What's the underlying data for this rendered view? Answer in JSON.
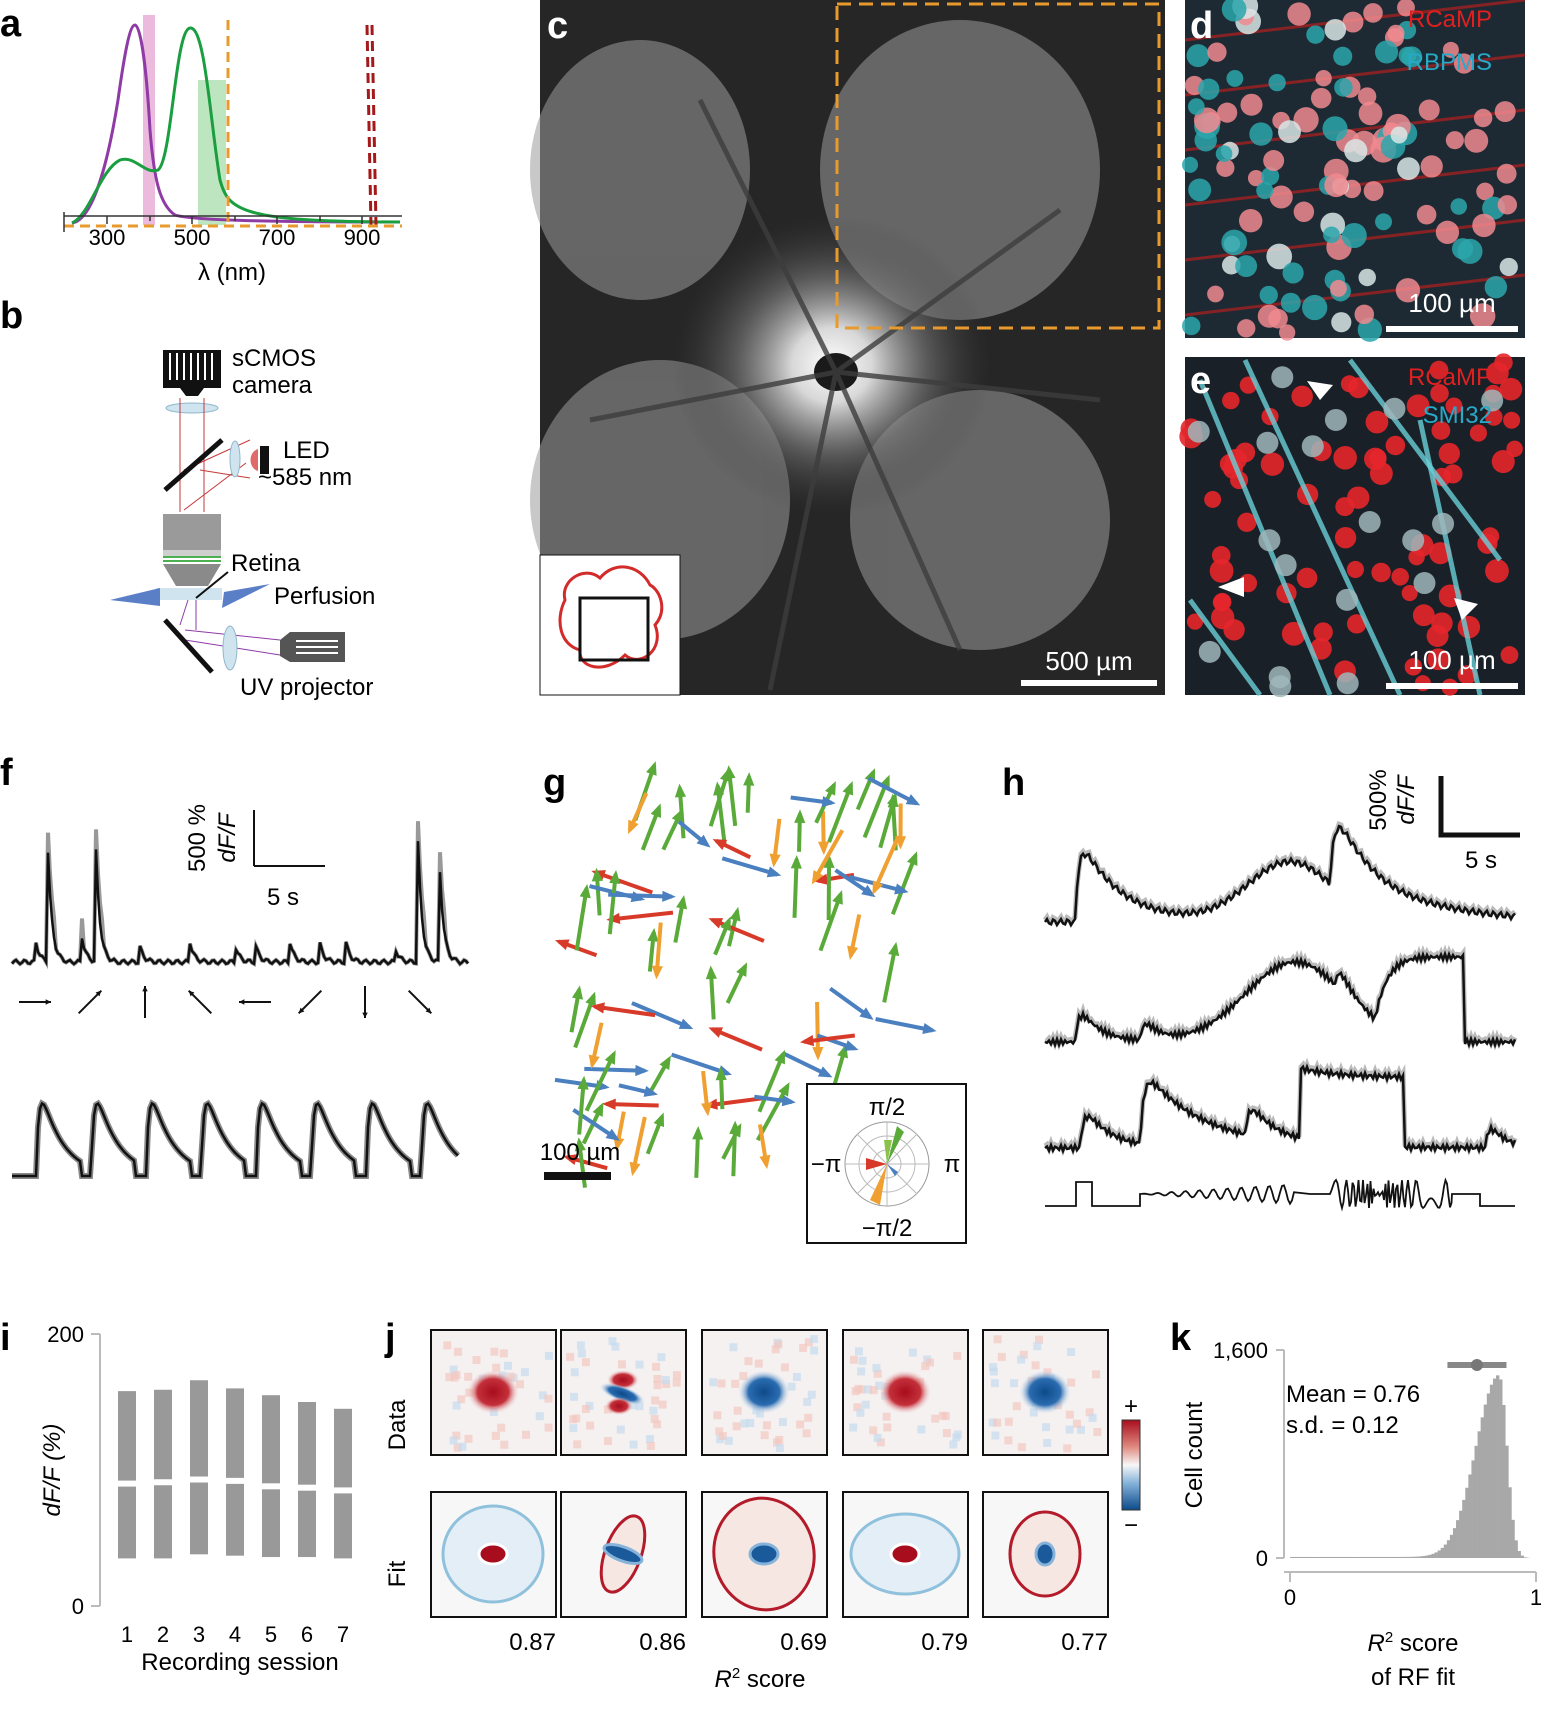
{
  "panels": {
    "a": {
      "label": "a",
      "xlabel": "λ (nm)",
      "ticks": [
        "300",
        "500",
        "700",
        "900"
      ],
      "colors": {
        "uv_spectrum": "#8e3ba6",
        "green_spectrum": "#1a9e3f",
        "orange_line": "#e89a2c",
        "darkred_line": "#a3191c"
      }
    },
    "b": {
      "label": "b",
      "camera": "sCMOS\ncamera",
      "led": "LED\n~585 nm",
      "retina": "Retina",
      "perfusion": "Perfusion",
      "projector": "UV projector"
    },
    "c": {
      "label": "c",
      "scalebar": "500 µm"
    },
    "d": {
      "label": "d",
      "stain1": "RCaMP",
      "stain2": "RBPMS",
      "scalebar": "100 µm"
    },
    "e": {
      "label": "e",
      "stain1": "RCaMP",
      "stain2": "SMI32",
      "scalebar": "100 µm"
    },
    "f": {
      "label": "f",
      "scale_y": "500 %",
      "scale_y_unit": "dF/F",
      "scale_x": "5 s"
    },
    "g": {
      "label": "g",
      "scalebar": "100 µm",
      "polar_labels": {
        "top": "π/2",
        "bottom": "−π/2",
        "left": "−π",
        "right": "π"
      },
      "arrow_colors": {
        "green": "#5aaa3a",
        "orange": "#f0a030",
        "blue": "#4a7fc0",
        "red": "#d83a2a"
      }
    },
    "h": {
      "label": "h",
      "scale_y": "500%",
      "scale_y_unit": "dF/F",
      "scale_x": "5 s"
    },
    "i": {
      "label": "i",
      "ylabel": "dF/F (%)",
      "xlabel": "Recording session"
    },
    "j": {
      "label": "j",
      "row1": "Data",
      "row2": "Fit",
      "xlabel_prefix": "R",
      "xlabel_sup": "2",
      "xlabel_suffix": " score",
      "scores": [
        "0.87",
        "0.86",
        "0.69",
        "0.79",
        "0.77"
      ],
      "colorbar_plus": "+",
      "colorbar_minus": "−"
    },
    "k": {
      "label": "k",
      "ylabel": "Cell count",
      "mean_text": "Mean = 0.76",
      "sd_text": "s.d. = 0.12",
      "xlabel_line1_prefix": "R",
      "xlabel_line1_sup": "2",
      "xlabel_line1_suffix": " score",
      "xlabel_line2": "of RF fit"
    }
  },
  "chart_data": [
    {
      "type": "bar",
      "panel": "i",
      "title": "",
      "xlabel": "Recording session",
      "ylabel": "dF/F (%)",
      "categories": [
        "1",
        "2",
        "3",
        "4",
        "5",
        "6",
        "7"
      ],
      "series": [
        {
          "values": [
            158,
            159,
            166,
            160,
            155,
            150,
            145
          ]
        },
        {
          "values": [
            35,
            35,
            38,
            37,
            36,
            36,
            35
          ]
        },
        {
          "values": [
            90,
            91,
            93,
            92,
            88,
            87,
            85
          ]
        }
      ],
      "yticks": [
        "0",
        "200"
      ],
      "ylim": [
        0,
        200
      ]
    },
    {
      "type": "bar",
      "panel": "k",
      "title": "",
      "xlabel": "R2 score of RF fit",
      "ylabel": "Cell count",
      "x_range": [
        0,
        1
      ],
      "xticks": [
        "0",
        "1"
      ],
      "yticks": [
        "0",
        "1,600"
      ],
      "ylim": [
        0,
        1600
      ],
      "mean": 0.76,
      "sd": 0.12,
      "peak_x": 0.85,
      "peak_count": 1400
    }
  ]
}
